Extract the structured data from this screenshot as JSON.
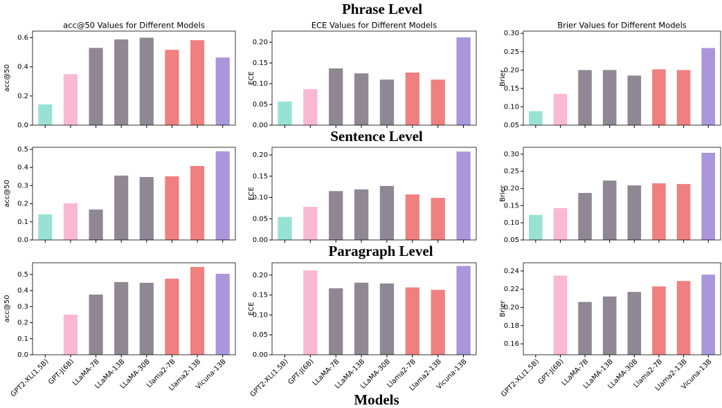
{
  "sections": [
    "Phrase Level",
    "Sentence Level",
    "Paragraph Level"
  ],
  "xlabel": "Models",
  "chart_data": [
    {
      "type": "bar",
      "title": "acc@50 Values for Different Models",
      "ylabel": "acc@50",
      "categories": [
        null,
        null,
        null,
        null,
        null,
        null,
        null,
        null
      ],
      "values": [
        0.142,
        0.35,
        0.53,
        0.588,
        0.6,
        0.517,
        0.583,
        0.464
      ],
      "colors": [
        "#98e2d4",
        "#fbb9d1",
        "#8f8793",
        "#8f8793",
        "#8f8793",
        "#f08080",
        "#f08080",
        "#a996db"
      ],
      "ylim": [
        0,
        0.645
      ],
      "yticks": [
        {
          "value": 0,
          "label": "0.0"
        },
        0.2,
        0.4,
        0.6
      ]
    },
    {
      "type": "bar",
      "title": "ECE Values for Different Models",
      "ylabel": "ECE",
      "categories": [
        null,
        null,
        null,
        null,
        null,
        null,
        null,
        null
      ],
      "values": [
        0.057,
        0.087,
        0.137,
        0.125,
        0.11,
        0.127,
        0.11,
        0.212
      ],
      "colors": [
        "#98e2d4",
        "#fbb9d1",
        "#8f8793",
        "#8f8793",
        "#8f8793",
        "#f08080",
        "#f08080",
        "#a996db"
      ],
      "ylim": [
        0,
        0.227
      ],
      "yticks": [
        {
          "value": 0,
          "label": "0.00"
        },
        0.05,
        {
          "value": 0.1,
          "label": "0.10"
        },
        0.15,
        {
          "value": 0.2,
          "label": "0.20"
        }
      ]
    },
    {
      "type": "bar",
      "title": "Brier Values for Different Models",
      "ylabel": "Brier",
      "categories": [
        null,
        null,
        null,
        null,
        null,
        null,
        null,
        null
      ],
      "values": [
        0.088,
        0.135,
        0.2,
        0.2,
        0.185,
        0.202,
        0.2,
        0.26
      ],
      "colors": [
        "#98e2d4",
        "#fbb9d1",
        "#8f8793",
        "#8f8793",
        "#8f8793",
        "#f08080",
        "#f08080",
        "#a996db"
      ],
      "ylim": [
        0.05,
        0.306
      ],
      "yticks": [
        0.05,
        {
          "value": 0.1,
          "label": "0.10"
        },
        0.15,
        {
          "value": 0.2,
          "label": "0.20"
        },
        0.25,
        {
          "value": 0.3,
          "label": "0.30"
        }
      ]
    },
    {
      "type": "bar",
      "ylabel": "acc@50",
      "categories": [
        null,
        null,
        null,
        null,
        null,
        null,
        null,
        null
      ],
      "values": [
        0.141,
        0.202,
        0.168,
        0.355,
        0.347,
        0.351,
        0.408,
        0.489
      ],
      "colors": [
        "#98e2d4",
        "#fbb9d1",
        "#8f8793",
        "#8f8793",
        "#8f8793",
        "#f08080",
        "#f08080",
        "#a996db"
      ],
      "ylim": [
        0,
        0.511
      ],
      "yticks": [
        {
          "value": 0,
          "label": "0.0"
        },
        0.1,
        0.2,
        0.3,
        0.4,
        0.5
      ]
    },
    {
      "type": "bar",
      "ylabel": "ECE",
      "categories": [
        null,
        null,
        null,
        null,
        null,
        null,
        null,
        null
      ],
      "values": [
        0.054,
        0.078,
        0.115,
        0.119,
        0.127,
        0.107,
        0.099,
        0.208
      ],
      "colors": [
        "#98e2d4",
        "#fbb9d1",
        "#8f8793",
        "#8f8793",
        "#8f8793",
        "#f08080",
        "#f08080",
        "#a996db"
      ],
      "ylim": [
        0,
        0.218
      ],
      "yticks": [
        {
          "value": 0,
          "label": "0.00"
        },
        0.05,
        {
          "value": 0.1,
          "label": "0.10"
        },
        0.15,
        {
          "value": 0.2,
          "label": "0.20"
        }
      ]
    },
    {
      "type": "bar",
      "ylabel": "Brier",
      "categories": [
        null,
        null,
        null,
        null,
        null,
        null,
        null,
        null
      ],
      "values": [
        0.123,
        0.143,
        0.187,
        0.223,
        0.209,
        0.215,
        0.213,
        0.304
      ],
      "colors": [
        "#98e2d4",
        "#fbb9d1",
        "#8f8793",
        "#8f8793",
        "#8f8793",
        "#f08080",
        "#f08080",
        "#a996db"
      ],
      "ylim": [
        0.05,
        0.32
      ],
      "yticks": [
        0.05,
        {
          "value": 0.1,
          "label": "0.10"
        },
        0.15,
        {
          "value": 0.2,
          "label": "0.20"
        },
        0.25,
        {
          "value": 0.3,
          "label": "0.30"
        }
      ]
    },
    {
      "type": "bar",
      "ylabel": "acc@50",
      "categories": [
        "GPT2-XL(1.5B)",
        "GPT-J(6B)",
        "LLaMA-7B",
        "LLaMA-13B",
        "LLaMA-30B",
        "Llama2-7B",
        "Llama2-13B",
        "Vicuna-13B"
      ],
      "values": [
        null,
        0.25,
        0.375,
        0.453,
        0.448,
        0.474,
        0.547,
        0.504
      ],
      "colors": [
        "#98e2d4",
        "#fbb9d1",
        "#8f8793",
        "#8f8793",
        "#8f8793",
        "#f08080",
        "#f08080",
        "#a996db"
      ],
      "ylim": [
        0,
        0.573
      ],
      "yticks": [
        {
          "value": 0,
          "label": "0.0"
        },
        0.1,
        0.2,
        0.3,
        0.4,
        0.5
      ]
    },
    {
      "type": "bar",
      "ylabel": "ECE",
      "categories": [
        "GPT2-XL(1.5B)",
        "GPT-J(6B)",
        "LLaMA-7B",
        "LLaMA-13B",
        "LLaMA-30B",
        "Llama2-7B",
        "Llama2-13B",
        "Vicuna-13B"
      ],
      "values": [
        null,
        0.212,
        0.167,
        0.181,
        0.179,
        0.169,
        0.163,
        0.223
      ],
      "colors": [
        "#98e2d4",
        "#fbb9d1",
        "#8f8793",
        "#8f8793",
        "#8f8793",
        "#f08080",
        "#f08080",
        "#a996db"
      ],
      "ylim": [
        0,
        0.231
      ],
      "yticks": [
        {
          "value": 0,
          "label": "0.00"
        },
        0.05,
        {
          "value": 0.1,
          "label": "0.10"
        },
        0.15,
        {
          "value": 0.2,
          "label": "0.20"
        }
      ]
    },
    {
      "type": "bar",
      "ylabel": "Brier",
      "categories": [
        "GPT2-XL(1.5B)",
        "GPT-J(6B)",
        "LLaMA-7B",
        "LLaMA-13B",
        "LLaMA-30B",
        "Llama2-7B",
        "Llama2-13B",
        "Vicuna-13B"
      ],
      "values": [
        null,
        0.235,
        0.206,
        0.212,
        0.217,
        0.223,
        0.229,
        0.236
      ],
      "colors": [
        "#98e2d4",
        "#fbb9d1",
        "#8f8793",
        "#8f8793",
        "#8f8793",
        "#f08080",
        "#f08080",
        "#a996db"
      ],
      "ylim": [
        0.148,
        0.249
      ],
      "yticks": [
        0.16,
        0.18,
        {
          "value": 0.2,
          "label": "0.20"
        },
        0.22,
        0.24
      ]
    }
  ]
}
